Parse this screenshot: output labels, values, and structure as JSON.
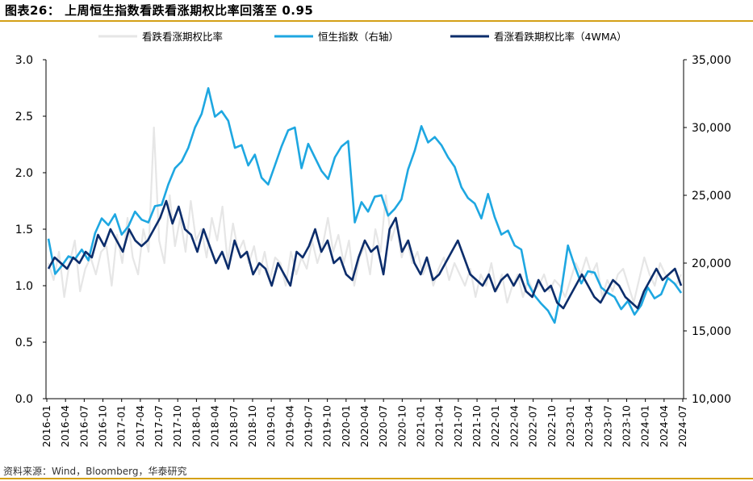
{
  "header": {
    "title": "图表26：  上周恒生指数看跌看涨期权比率回落至 0.95"
  },
  "footer": {
    "source": "资料来源：Wind，Bloomberg，华泰研究"
  },
  "colors": {
    "weekly_ratio": "#e6e6e6",
    "hsi": "#1ea7e1",
    "ratio_4wma": "#0c2d6b",
    "accent_rule": "#d4a017"
  },
  "chart_data": {
    "type": "line",
    "title": "上周恒生指数看跌看涨期权比率回落至 0.95",
    "legend_position": "top",
    "y_left": {
      "min": 0,
      "max": 3.0,
      "ticks": [
        "0.0",
        "0.5",
        "1.0",
        "1.5",
        "2.0",
        "2.5",
        "3.0"
      ]
    },
    "y_right": {
      "min": 10000,
      "max": 35000,
      "ticks": [
        "10,000",
        "15,000",
        "20,000",
        "25,000",
        "30,000",
        "35,000"
      ]
    },
    "x_ticks": [
      "2016-01",
      "2016-04",
      "2016-07",
      "2016-10",
      "2017-01",
      "2017-04",
      "2017-07",
      "2017-10",
      "2018-01",
      "2018-04",
      "2018-07",
      "2018-10",
      "2019-01",
      "2019-04",
      "2019-07",
      "2019-10",
      "2020-01",
      "2020-04",
      "2020-07",
      "2020-10",
      "2021-01",
      "2021-04",
      "2021-07",
      "2021-10",
      "2022-01",
      "2022-04",
      "2022-07",
      "2022-10",
      "2023-01",
      "2023-04",
      "2023-07",
      "2023-10",
      "2024-01",
      "2024-04",
      "2024-07"
    ],
    "series": [
      {
        "name": "看跌看涨期权比率",
        "axis": "left",
        "values": [
          1.2,
          1.05,
          1.3,
          0.9,
          1.2,
          1.4,
          0.95,
          1.15,
          1.25,
          1.1,
          1.3,
          1.35,
          1.0,
          1.45,
          1.2,
          1.6,
          1.25,
          1.1,
          1.5,
          1.3,
          2.4,
          1.4,
          1.2,
          1.8,
          1.35,
          1.6,
          1.3,
          1.75,
          1.4,
          1.5,
          1.25,
          1.6,
          1.4,
          1.7,
          1.2,
          1.55,
          1.3,
          1.4,
          1.2,
          1.35,
          1.1,
          1.3,
          1.05,
          1.25,
          1.2,
          1.0,
          1.3,
          1.1,
          1.25,
          1.15,
          1.4,
          1.2,
          1.35,
          1.6,
          1.3,
          1.45,
          1.2,
          1.4,
          1.0,
          1.25,
          1.35,
          1.1,
          1.5,
          1.3,
          1.8,
          1.4,
          1.55,
          1.25,
          1.4,
          1.2,
          1.3,
          1.1,
          1.2,
          1.0,
          1.15,
          1.25,
          1.05,
          1.2,
          1.1,
          1.0,
          1.15,
          0.9,
          1.1,
          1.0,
          1.2,
          0.95,
          1.1,
          0.85,
          1.0,
          1.1,
          0.9,
          1.05,
          0.95,
          1.0,
          1.1,
          0.95,
          1.05,
          1.0,
          0.9,
          1.05,
          1.2,
          1.1,
          1.25,
          1.1,
          1.2,
          0.9,
          1.05,
          0.95,
          1.1,
          1.15,
          1.0,
          0.85,
          1.05,
          1.25,
          1.1,
          1.0,
          1.2,
          1.1,
          1.05,
          1.0,
          1.1
        ]
      },
      {
        "name": "恒生指数（右轴）",
        "axis": "right",
        "values": [
          21800,
          19200,
          19800,
          20500,
          20300,
          21000,
          20200,
          22200,
          23300,
          22800,
          23600,
          22100,
          22700,
          23800,
          23200,
          23000,
          24200,
          24300,
          25800,
          27000,
          27500,
          28500,
          30000,
          31000,
          32900,
          30800,
          31200,
          30500,
          28500,
          28700,
          27200,
          28000,
          26300,
          25800,
          27200,
          28600,
          29800,
          30000,
          27000,
          28800,
          27800,
          26800,
          26200,
          27800,
          28600,
          29000,
          23000,
          24500,
          23800,
          24900,
          25000,
          23500,
          24000,
          24700,
          26900,
          28300,
          30100,
          28900,
          29300,
          28700,
          27800,
          27100,
          25600,
          24800,
          24400,
          23300,
          25100,
          23400,
          22100,
          22400,
          21300,
          21000,
          18500,
          17600,
          17000,
          16500,
          15600,
          18000,
          21300,
          19800,
          18500,
          19400,
          19300,
          18200,
          17800,
          17500,
          16600,
          17200,
          16200,
          16900,
          18200,
          17400,
          17700,
          18900,
          18500,
          17800
        ]
      },
      {
        "name": "看涨看跌期权比率（4WMA）",
        "axis": "left",
        "values": [
          1.15,
          1.25,
          1.2,
          1.15,
          1.25,
          1.2,
          1.3,
          1.25,
          1.45,
          1.35,
          1.5,
          1.4,
          1.3,
          1.5,
          1.4,
          1.35,
          1.4,
          1.5,
          1.6,
          1.75,
          1.55,
          1.7,
          1.5,
          1.45,
          1.3,
          1.5,
          1.35,
          1.2,
          1.3,
          1.15,
          1.4,
          1.25,
          1.3,
          1.1,
          1.2,
          1.15,
          1.0,
          1.2,
          1.1,
          1.0,
          1.3,
          1.25,
          1.35,
          1.5,
          1.3,
          1.4,
          1.2,
          1.25,
          1.1,
          1.05,
          1.25,
          1.4,
          1.3,
          1.35,
          1.1,
          1.5,
          1.6,
          1.3,
          1.4,
          1.2,
          1.1,
          1.25,
          1.05,
          1.1,
          1.2,
          1.3,
          1.4,
          1.25,
          1.1,
          1.05,
          1.0,
          1.1,
          0.95,
          1.05,
          1.1,
          1.0,
          1.1,
          0.95,
          0.9,
          1.05,
          0.95,
          1.0,
          0.85,
          0.8,
          0.9,
          1.0,
          1.1,
          1.0,
          0.9,
          0.85,
          0.95,
          1.05,
          1.0,
          0.9,
          0.85,
          0.8,
          0.95,
          1.05,
          1.15,
          1.05,
          1.1,
          1.15,
          1.0
        ]
      }
    ]
  }
}
